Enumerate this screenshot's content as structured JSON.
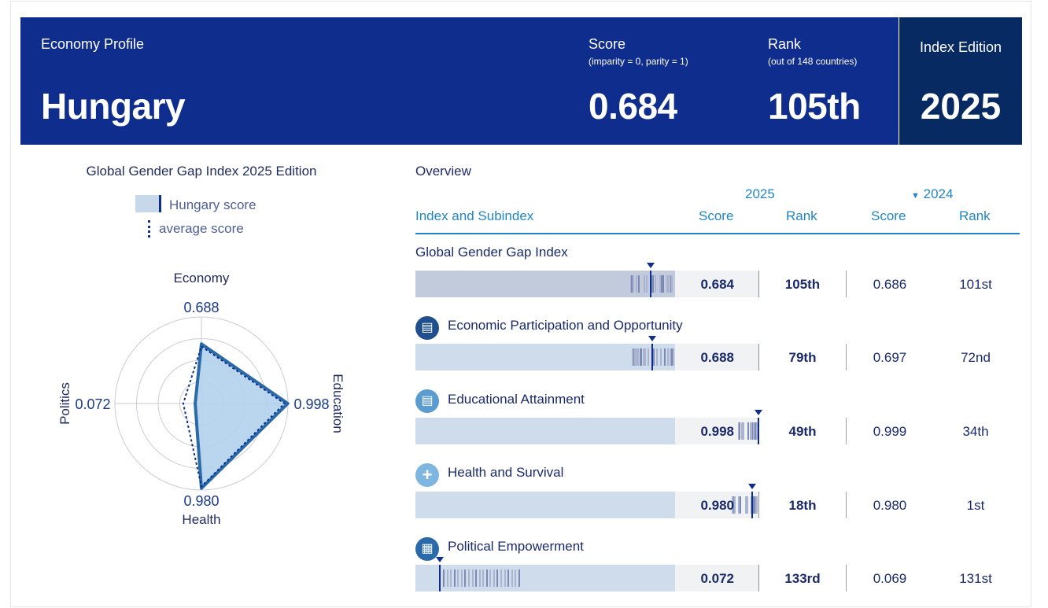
{
  "header": {
    "subtitle": "Economy Profile",
    "country": "Hungary",
    "score_label": "Score",
    "score_note": "(imparity = 0, parity = 1)",
    "score_value": "0.684",
    "rank_label": "Rank",
    "rank_note": "(out of 148 countries)",
    "rank_value": "105th",
    "edition_label": "Index Edition",
    "edition_value": "2025"
  },
  "radar": {
    "title": "Global Gender Gap Index 2025 Edition",
    "legend_country": "Hungary score",
    "legend_average": "average score",
    "axis_economy": "Economy",
    "axis_education": "Education",
    "axis_health": "Health",
    "axis_politics": "Politics",
    "value_economy": "0.688",
    "value_education": "0.998",
    "value_health": "0.980",
    "value_politics": "0.072"
  },
  "overview": {
    "title": "Overview",
    "year_current": "2025",
    "year_previous": "2024",
    "col_index": "Index and Subindex",
    "col_score": "Score",
    "col_rank": "Rank",
    "col_score_prev": "Score",
    "col_rank_prev": "Rank",
    "rows": [
      {
        "name": "Global Gender Gap Index",
        "score": "0.684",
        "rank": "105th",
        "score_prev": "0.686",
        "rank_prev": "101st"
      },
      {
        "name": "Economic Participation and Opportunity",
        "score": "0.688",
        "rank": "79th",
        "score_prev": "0.697",
        "rank_prev": "72nd"
      },
      {
        "name": "Educational Attainment",
        "score": "0.998",
        "rank": "49th",
        "score_prev": "0.999",
        "rank_prev": "34th"
      },
      {
        "name": "Health and Survival",
        "score": "0.980",
        "rank": "18th",
        "score_prev": "0.980",
        "rank_prev": "1st"
      },
      {
        "name": "Political Empowerment",
        "score": "0.072",
        "rank": "133rd",
        "score_prev": "0.069",
        "rank_prev": "131st"
      }
    ]
  },
  "chart_data": [
    {
      "type": "radar",
      "title": "Global Gender Gap Index 2025 Edition",
      "axes": [
        "Economy",
        "Education",
        "Health",
        "Politics"
      ],
      "series": [
        {
          "name": "Hungary score",
          "values": [
            0.688,
            0.998,
            0.98,
            0.072
          ]
        },
        {
          "name": "average score",
          "values": [
            0.66,
            0.96,
            0.96,
            0.21
          ]
        }
      ],
      "range": [
        0,
        1
      ],
      "grid": true
    },
    {
      "type": "bar",
      "categories": [
        "Global Gender Gap Index",
        "Economic Participation and Opportunity",
        "Educational Attainment",
        "Health and Survival",
        "Political Empowerment"
      ],
      "values": [
        0.684,
        0.688,
        0.998,
        0.98,
        0.072
      ],
      "range": [
        0,
        1
      ]
    }
  ],
  "colors": {
    "header_bg": "#0f2d8c",
    "edition_bg": "#072a63",
    "accent": "#1f86c6",
    "icon_economy": "#1f4f8c",
    "icon_education": "#5a9bd0",
    "icon_health": "#7fb6e0",
    "icon_politics": "#2a6aa8"
  },
  "icons": {
    "economy": "document-coins-icon",
    "education": "book-icon",
    "health": "plus-icon",
    "politics": "institution-icon",
    "triangle": "triangle-down-icon"
  }
}
